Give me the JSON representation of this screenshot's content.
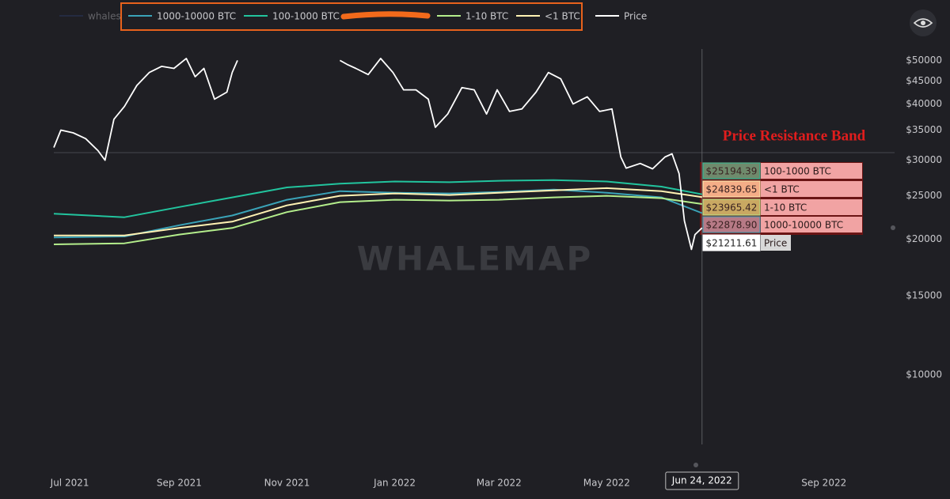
{
  "chart_data": {
    "type": "line",
    "log_scale": true,
    "watermark": "WHALEMAP",
    "annotation": "Price Resistance Band",
    "xlim": [
      "2021-06-22",
      "2022-10-11"
    ],
    "xticks": [
      {
        "value": "2021-07-01",
        "label": "Jul 2021"
      },
      {
        "value": "2021-09-01",
        "label": "Sep 2021"
      },
      {
        "value": "2021-11-01",
        "label": "Nov 2021"
      },
      {
        "value": "2022-01-01",
        "label": "Jan 2022"
      },
      {
        "value": "2022-03-01",
        "label": "Mar 2022"
      },
      {
        "value": "2022-05-01",
        "label": "May 2022"
      },
      {
        "value": "2022-09-01",
        "label": "Sep 2022"
      }
    ],
    "crosshair": {
      "value": "2022-06-24",
      "label": "Jun 24, 2022"
    },
    "ylim": [
      7000,
      53000
    ],
    "yticks": [
      {
        "value": 10000,
        "label": "$10000"
      },
      {
        "value": 15000,
        "label": "$15000"
      },
      {
        "value": 20000,
        "label": "$20000"
      },
      {
        "value": 25000,
        "label": "$25000"
      },
      {
        "value": 30000,
        "label": "$30000"
      },
      {
        "value": 35000,
        "label": "$35000"
      },
      {
        "value": 40000,
        "label": "$40000"
      },
      {
        "value": 45000,
        "label": "$45000"
      },
      {
        "value": 50000,
        "label": "$50000"
      }
    ],
    "series": [
      {
        "name": "whales",
        "color": "#2c3d6e",
        "hidden": true
      },
      {
        "name": "1000-10000 BTC",
        "color": "#3aa3b8",
        "x": [
          "2021-06-22",
          "2021-08-01",
          "2021-09-01",
          "2021-10-01",
          "2021-11-01",
          "2021-12-01",
          "2022-01-01",
          "2022-02-01",
          "2022-03-01",
          "2022-04-01",
          "2022-05-01",
          "2022-06-01",
          "2022-06-24"
        ],
        "values": [
          20200,
          20300,
          21500,
          22600,
          24500,
          25600,
          25400,
          25300,
          25500,
          25800,
          25400,
          24800,
          22878.9
        ],
        "value_labels": [
          null,
          null,
          null,
          null,
          null,
          null,
          null,
          null,
          null,
          null,
          null,
          null,
          "$22878.90"
        ]
      },
      {
        "name": "100-1000 BTC",
        "color": "#22c49e",
        "x": [
          "2021-06-22",
          "2021-08-01",
          "2021-09-01",
          "2021-10-01",
          "2021-11-01",
          "2021-12-01",
          "2022-01-01",
          "2022-02-01",
          "2022-03-01",
          "2022-04-01",
          "2022-05-01",
          "2022-06-01",
          "2022-06-24"
        ],
        "values": [
          22800,
          22400,
          23600,
          24800,
          26100,
          26600,
          26900,
          26800,
          27000,
          27100,
          26900,
          26200,
          25194.39
        ],
        "value_labels": [
          null,
          null,
          null,
          null,
          null,
          null,
          null,
          null,
          null,
          null,
          null,
          null,
          "$25194.39"
        ]
      },
      {
        "name": "1-10 BTC",
        "color": "#b4ee8c",
        "x": [
          "2021-06-22",
          "2021-08-01",
          "2021-09-01",
          "2021-10-01",
          "2021-11-01",
          "2021-12-01",
          "2022-01-01",
          "2022-02-01",
          "2022-03-01",
          "2022-04-01",
          "2022-05-01",
          "2022-06-01",
          "2022-06-24"
        ],
        "values": [
          19500,
          19600,
          20500,
          21200,
          23000,
          24200,
          24500,
          24400,
          24500,
          24800,
          25000,
          24700,
          23965.42
        ],
        "value_labels": [
          null,
          null,
          null,
          null,
          null,
          null,
          null,
          null,
          null,
          null,
          null,
          null,
          "$23965.42"
        ]
      },
      {
        "name": "<1 BTC",
        "color": "#fff2b3",
        "x": [
          "2021-06-22",
          "2021-08-01",
          "2021-09-01",
          "2021-10-01",
          "2021-11-01",
          "2021-12-01",
          "2022-01-01",
          "2022-02-01",
          "2022-03-01",
          "2022-04-01",
          "2022-05-01",
          "2022-06-01",
          "2022-06-24"
        ],
        "values": [
          20400,
          20400,
          21200,
          21900,
          23800,
          25000,
          25300,
          25100,
          25400,
          25700,
          26000,
          25600,
          24839.65
        ],
        "value_labels": [
          null,
          null,
          null,
          null,
          null,
          null,
          null,
          null,
          null,
          null,
          null,
          null,
          "$24839.65"
        ]
      },
      {
        "name": "Price",
        "color": "#ffffff",
        "x": [
          "2021-06-22",
          "2021-06-26",
          "2021-07-03",
          "2021-07-10",
          "2021-07-17",
          "2021-07-21",
          "2021-07-26",
          "2021-08-01",
          "2021-08-08",
          "2021-08-15",
          "2021-08-22",
          "2021-08-29",
          "2021-09-05",
          "2021-09-10",
          "2021-09-15",
          "2021-09-21",
          "2021-09-28",
          "2021-10-01",
          "2021-10-04",
          "2021-11-01",
          "2021-12-01",
          "2021-12-05",
          "2021-12-10",
          "2021-12-17",
          "2021-12-24",
          "2021-12-31",
          "2022-01-06",
          "2022-01-13",
          "2022-01-20",
          "2022-01-24",
          "2022-01-31",
          "2022-02-08",
          "2022-02-15",
          "2022-02-22",
          "2022-02-28",
          "2022-03-07",
          "2022-03-14",
          "2022-03-22",
          "2022-03-29",
          "2022-04-05",
          "2022-04-12",
          "2022-04-20",
          "2022-04-27",
          "2022-05-04",
          "2022-05-09",
          "2022-05-12",
          "2022-05-20",
          "2022-05-27",
          "2022-06-03",
          "2022-06-07",
          "2022-06-11",
          "2022-06-14",
          "2022-06-18",
          "2022-06-20",
          "2022-06-24"
        ],
        "values": [
          32000,
          35000,
          34500,
          33500,
          31500,
          30000,
          37000,
          39500,
          44000,
          47000,
          48500,
          48000,
          50500,
          46000,
          48000,
          41000,
          42500,
          47000,
          50000,
          null,
          50000,
          49000,
          48000,
          46500,
          50500,
          47000,
          43000,
          43000,
          41000,
          35500,
          38000,
          43500,
          43000,
          38000,
          43000,
          38500,
          39000,
          42500,
          47000,
          45500,
          40000,
          41500,
          38500,
          39000,
          30500,
          28800,
          29500,
          28700,
          30500,
          31000,
          28000,
          22000,
          19000,
          20500,
          21211.61
        ],
        "value_labels": [
          null,
          null,
          null,
          null,
          null,
          null,
          null,
          null,
          null,
          null,
          null,
          null,
          null,
          null,
          null,
          null,
          null,
          null,
          null,
          null,
          null,
          null,
          null,
          null,
          null,
          null,
          null,
          null,
          null,
          null,
          null,
          null,
          null,
          null,
          null,
          null,
          null,
          null,
          null,
          null,
          null,
          null,
          null,
          null,
          null,
          null,
          null,
          null,
          null,
          null,
          null,
          null,
          null,
          null,
          "$21211.61"
        ]
      }
    ]
  }
}
